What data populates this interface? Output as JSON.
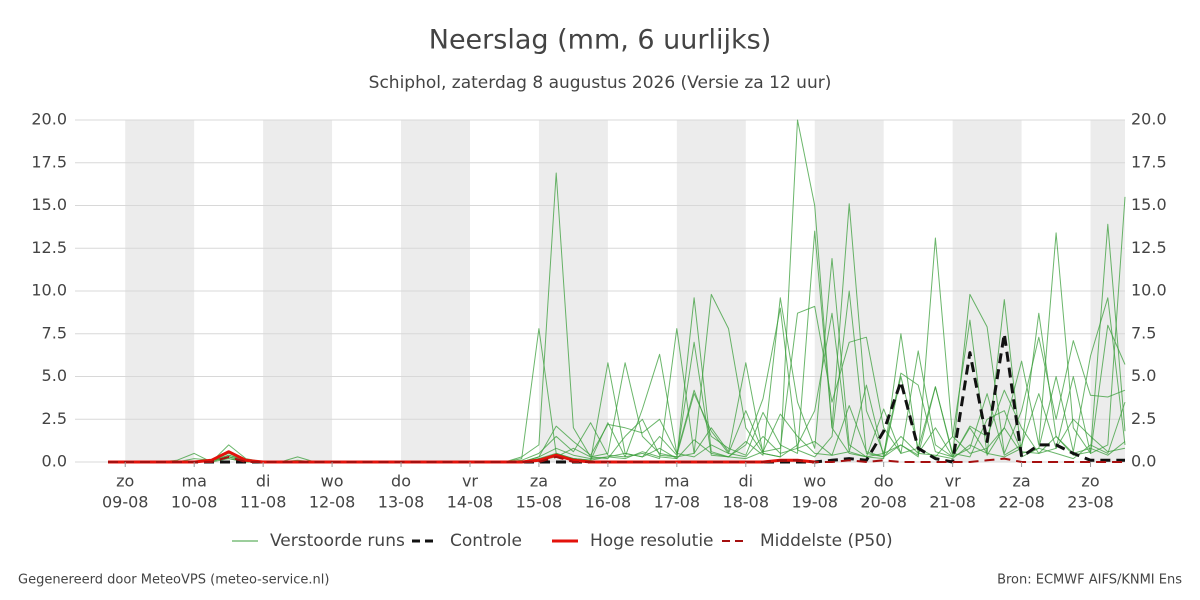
{
  "chart_data": {
    "type": "line",
    "title": "Neerslag (mm, 6 uurlijks)",
    "subtitle": "Schiphol, zaterdag  8 augustus 2026 (Versie za 12 uur)",
    "footer_left": "Gegenereerd door MeteoVPS (meteo-service.nl)",
    "footer_right": "Bron: ECMWF AIFS/KNMI Ens",
    "grid": true,
    "ylim": [
      0,
      20
    ],
    "yticks": [
      {
        "value": 0,
        "label": "0.0"
      },
      2.5,
      {
        "value": 5,
        "label": "5.0"
      },
      7.5,
      {
        "value": 10,
        "label": "10.0"
      },
      12.5,
      {
        "value": 15,
        "label": "15.0"
      },
      17.5,
      {
        "value": 20,
        "label": "20.0"
      }
    ],
    "categories": [
      null,
      [
        "zo",
        "09-08"
      ],
      null,
      null,
      null,
      [
        "ma",
        "10-08"
      ],
      null,
      null,
      null,
      [
        "di",
        "11-08"
      ],
      null,
      null,
      null,
      [
        "wo",
        "12-08"
      ],
      null,
      null,
      null,
      [
        "do",
        "13-08"
      ],
      null,
      null,
      null,
      [
        "vr",
        "14-08"
      ],
      null,
      null,
      null,
      [
        "za",
        "15-08"
      ],
      null,
      null,
      null,
      [
        "zo",
        "16-08"
      ],
      null,
      null,
      null,
      [
        "ma",
        "17-08"
      ],
      null,
      null,
      null,
      [
        "di",
        "18-08"
      ],
      null,
      null,
      null,
      [
        "wo",
        "19-08"
      ],
      null,
      null,
      null,
      [
        "do",
        "20-08"
      ],
      null,
      null,
      null,
      [
        "vr",
        "21-08"
      ],
      null,
      null,
      null,
      [
        "za",
        "22-08"
      ],
      null,
      null,
      null,
      [
        "zo",
        "23-08"
      ],
      null,
      null
    ],
    "ensemble": {
      "name": "Verstoorde runs",
      "color": "#3a9d3a",
      "runs": [
        [
          0,
          0,
          0,
          0,
          0.1,
          0.5,
          0,
          1.0,
          0.2,
          0,
          0,
          0.3,
          0,
          0,
          0,
          0,
          0,
          0,
          0,
          0,
          0,
          0,
          0,
          0,
          0.2,
          7.8,
          0.5,
          0.2,
          0.1,
          5.8,
          0.5,
          0.3,
          0.8,
          0.2,
          9.6,
          0.6,
          0.3,
          1.2,
          0.4,
          9.6,
          3.5,
          0.8,
          11.9,
          1.0,
          0.3,
          0.2,
          7.5,
          0.5,
          0.4,
          0.2,
          1.0,
          0.5,
          9.5,
          0.3,
          0.8,
          0.5,
          0.2,
          1.0,
          0.5,
          3.5
        ],
        [
          0,
          0,
          0,
          0,
          0,
          0.2,
          0.1,
          0.4,
          0.1,
          0,
          0,
          0,
          0,
          0,
          0,
          0,
          0,
          0,
          0,
          0,
          0,
          0,
          0,
          0,
          0.3,
          1.0,
          16.9,
          2.0,
          0.3,
          0.5,
          5.8,
          1.5,
          0.5,
          0.3,
          0.5,
          9.8,
          7.8,
          2.0,
          0.5,
          0.3,
          20.0,
          15.0,
          2.0,
          0.5,
          0.3,
          3.1,
          0.5,
          6.5,
          1.0,
          0.3,
          2.0,
          0.5,
          0.3,
          0.8,
          8.7,
          1.5,
          0.4,
          0.6,
          13.9,
          1.8
        ],
        [
          0,
          0,
          0,
          0,
          0,
          0,
          0.1,
          0.3,
          0,
          0,
          0,
          0,
          0,
          0,
          0,
          0,
          0,
          0,
          0,
          0,
          0,
          0,
          0,
          0,
          0,
          0.3,
          2.1,
          1.2,
          0.4,
          2.2,
          2.0,
          1.7,
          2.5,
          0.5,
          4.2,
          1.5,
          0.8,
          0.4,
          2.9,
          1.0,
          0.5,
          13.5,
          2.0,
          15.1,
          3.0,
          0.5,
          1.0,
          0.3,
          13.1,
          1.5,
          0.5,
          0.8,
          2.0,
          5.9,
          1.0,
          13.4,
          2.0,
          0.5,
          1.0,
          15.5
        ],
        [
          0,
          0,
          0,
          0,
          0,
          0,
          0.1,
          0.5,
          0.1,
          0,
          0,
          0.1,
          0,
          0,
          0,
          0,
          0,
          0,
          0,
          0,
          0,
          0,
          0,
          0,
          0.1,
          0.5,
          1.5,
          0.6,
          2.3,
          0.4,
          0.3,
          3.1,
          6.3,
          0.5,
          0.3,
          1.0,
          0.5,
          3.0,
          0.6,
          0.8,
          8.7,
          9.1,
          3.5,
          7.0,
          7.3,
          2.0,
          0.5,
          0.8,
          4.4,
          0.4,
          9.8,
          7.9,
          0.5,
          3.0,
          7.3,
          2.5,
          7.1,
          3.9,
          3.8,
          4.2
        ],
        [
          0,
          0,
          0,
          0,
          0,
          0,
          0,
          0.2,
          0,
          0,
          0,
          0,
          0,
          0,
          0,
          0,
          0,
          0,
          0,
          0,
          0,
          0,
          0,
          0,
          0,
          0.2,
          0.5,
          0.2,
          0.1,
          2.3,
          0.3,
          0.5,
          0.2,
          7.8,
          0.5,
          2.0,
          0.6,
          5.8,
          0.5,
          0.3,
          1.0,
          3.0,
          8.7,
          0.6,
          4.5,
          0.3,
          5.0,
          0.8,
          0.3,
          1.5,
          8.3,
          0.4,
          2.0,
          0.5,
          0.8,
          5.0,
          0.6,
          6.2,
          9.6,
          1.0
        ],
        [
          0,
          0,
          0,
          0,
          0,
          0,
          0.1,
          0.3,
          0.1,
          0,
          0,
          0,
          0,
          0,
          0,
          0,
          0,
          0,
          0,
          0,
          0,
          0,
          0,
          0,
          0,
          0.1,
          0.3,
          0.8,
          0.3,
          0.2,
          1.5,
          2.5,
          0.4,
          0.3,
          7.0,
          0.4,
          0.3,
          1.0,
          3.7,
          9.0,
          0.7,
          0.3,
          1.5,
          10.0,
          0.5,
          0.3,
          1.5,
          0.5,
          2.0,
          0.3,
          0.8,
          4.0,
          0.4,
          1.0,
          4.0,
          0.8,
          5.0,
          0.5,
          8.0,
          5.7
        ],
        [
          0,
          0,
          0,
          0,
          0,
          0,
          0,
          0.4,
          0.1,
          0,
          0,
          0,
          0,
          0,
          0,
          0,
          0,
          0,
          0,
          0,
          0,
          0,
          0,
          0,
          0,
          0.3,
          0.8,
          0.4,
          0.2,
          0.3,
          0.5,
          0.3,
          1.5,
          0.4,
          4.0,
          1.8,
          0.5,
          0.3,
          1.5,
          0.5,
          0.8,
          1.2,
          0.4,
          3.3,
          0.6,
          0.3,
          1.0,
          0.4,
          4.4,
          0.5,
          0.3,
          2.5,
          3.0,
          0.6,
          0.5,
          1.5,
          0.5,
          0.8,
          0.4,
          1.2
        ],
        [
          0,
          0,
          0,
          0,
          0,
          0,
          0.1,
          0.2,
          0,
          0,
          0,
          0,
          0,
          0,
          0,
          0,
          0,
          0,
          0,
          0,
          0,
          0,
          0,
          0,
          0,
          0.2,
          0.4,
          0.2,
          0.1,
          0.3,
          0.2,
          0.6,
          0.3,
          0.2,
          1.3,
          0.5,
          0.3,
          0.2,
          0.6,
          2.8,
          1.5,
          0.5,
          0.4,
          0.6,
          0.3,
          0.5,
          5.2,
          4.5,
          0.6,
          0.3,
          2.1,
          1.5,
          4.2,
          2.0,
          0.5,
          0.8,
          2.5,
          1.5,
          0.6,
          0.8
        ]
      ]
    },
    "series": [
      {
        "name": "Controle",
        "color": "#111111",
        "style": "dashed",
        "width": 3,
        "values": [
          0,
          0,
          0,
          0,
          0,
          0,
          0,
          0,
          0,
          0,
          0,
          0,
          0,
          0,
          0,
          0,
          0,
          0,
          0,
          0,
          0,
          0,
          0,
          0,
          0,
          0,
          0,
          0,
          0,
          0,
          0,
          0,
          0,
          0,
          0,
          0,
          0,
          0,
          0,
          0,
          0,
          0,
          0.1,
          0.2,
          0.1,
          1.8,
          4.7,
          0.8,
          0.2,
          0,
          6.4,
          1.2,
          7.5,
          0.3,
          1.0,
          1.0,
          0.5,
          0.1,
          0.1,
          0.1
        ]
      },
      {
        "name": "Hoge resolutie",
        "color": "#e3120b",
        "style": "solid",
        "width": 3,
        "values": [
          0,
          0,
          0,
          0,
          0,
          0,
          0.1,
          0.6,
          0.1,
          0,
          0,
          0,
          0,
          0,
          0,
          0,
          0,
          0,
          0,
          0,
          0,
          0,
          0,
          0,
          0,
          0.1,
          0.4,
          0.1,
          0,
          0,
          0,
          0,
          0,
          0,
          0,
          0,
          0,
          0,
          0,
          0.1,
          0.1,
          0,
          null,
          null,
          null,
          null,
          null,
          null,
          null,
          null,
          null,
          null,
          null,
          null,
          null,
          null,
          null,
          null,
          null,
          null
        ]
      },
      {
        "name": "Middelste (P50)",
        "color": "#a50f0f",
        "style": "dashed",
        "width": 2,
        "values": [
          0,
          0,
          0,
          0,
          0,
          0,
          0,
          0.3,
          0,
          0,
          0,
          0,
          0,
          0,
          0,
          0,
          0,
          0,
          0,
          0,
          0,
          0,
          0,
          0,
          0,
          0,
          0.3,
          0,
          0,
          0,
          0,
          0,
          0,
          0,
          0,
          0,
          0,
          0,
          0,
          0.1,
          0.1,
          0,
          0,
          0.1,
          0,
          0.1,
          0,
          0,
          0,
          0,
          0,
          0.1,
          0.2,
          0,
          0,
          0,
          0,
          0,
          0,
          0
        ]
      }
    ]
  }
}
